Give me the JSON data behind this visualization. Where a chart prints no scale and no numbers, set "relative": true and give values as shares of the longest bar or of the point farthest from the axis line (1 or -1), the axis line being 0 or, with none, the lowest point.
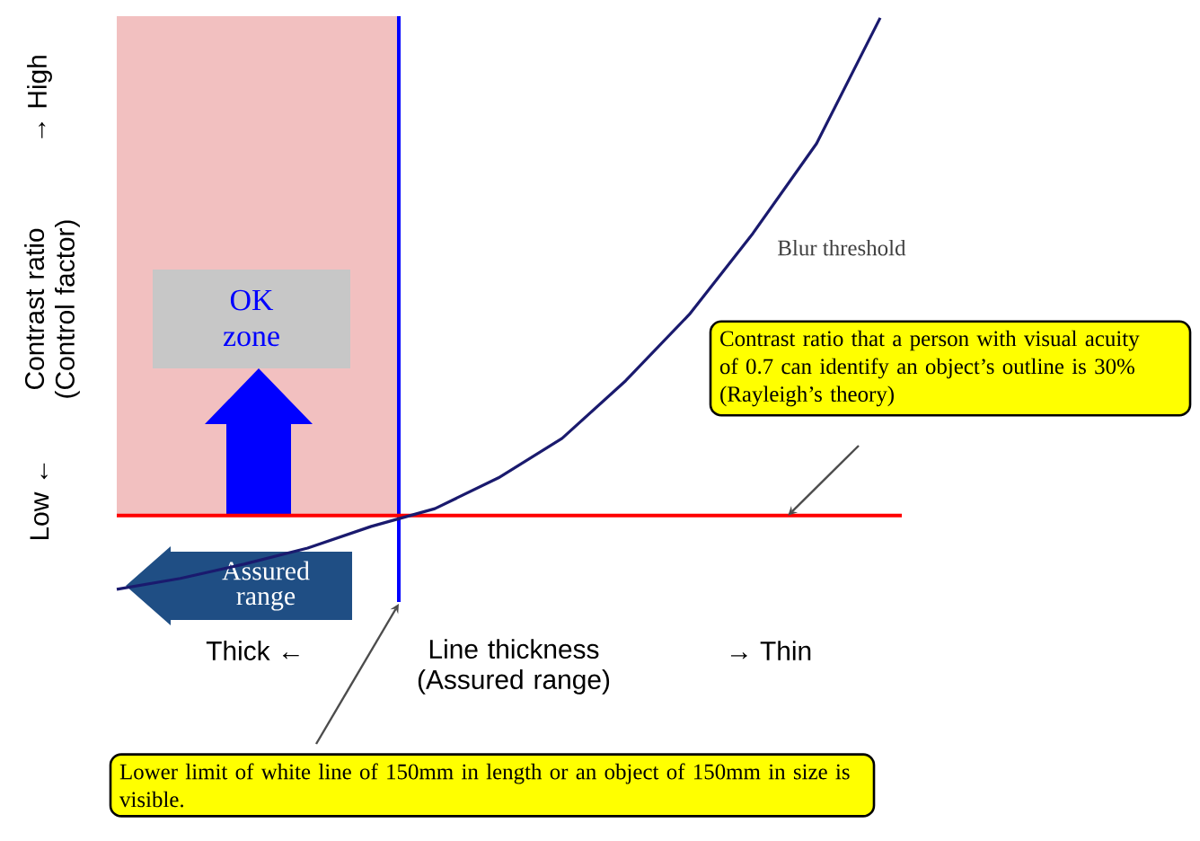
{
  "chart_data": {
    "type": "line",
    "relative": true,
    "tick_labels": false,
    "marker": "none",
    "line_style": "solid",
    "categories": [
      null,
      null,
      null,
      null,
      null,
      null,
      null,
      null,
      null,
      null,
      null,
      null,
      null
    ],
    "series": [
      {
        "name": "Blur threshold",
        "color": "#1a1a6e",
        "values": [
          0,
          0.019,
          0.044,
          0.072,
          0.11,
          0.141,
          0.195,
          0.264,
          0.365,
          0.481,
          0.623,
          0.78,
          1
        ]
      }
    ],
    "xlabel": "Line thickness (Assured range)",
    "ylabel": "Contrast ratio (Control factor)",
    "ref_lines": [
      {
        "axis": "y",
        "value": 0.129,
        "color": "#ff0000"
      }
    ],
    "annotations": [
      "OK zone",
      "Assured range",
      "Thick ←",
      "→ Thin",
      "Low ←",
      "→ High",
      "Contrast ratio that a person with visual acuity of 0.7 can identify an object’s outline is 30% (Rayleigh’s theory)",
      "Lower limit of white line of  150mm in length or an object of 150mm in size is visible."
    ]
  }
}
